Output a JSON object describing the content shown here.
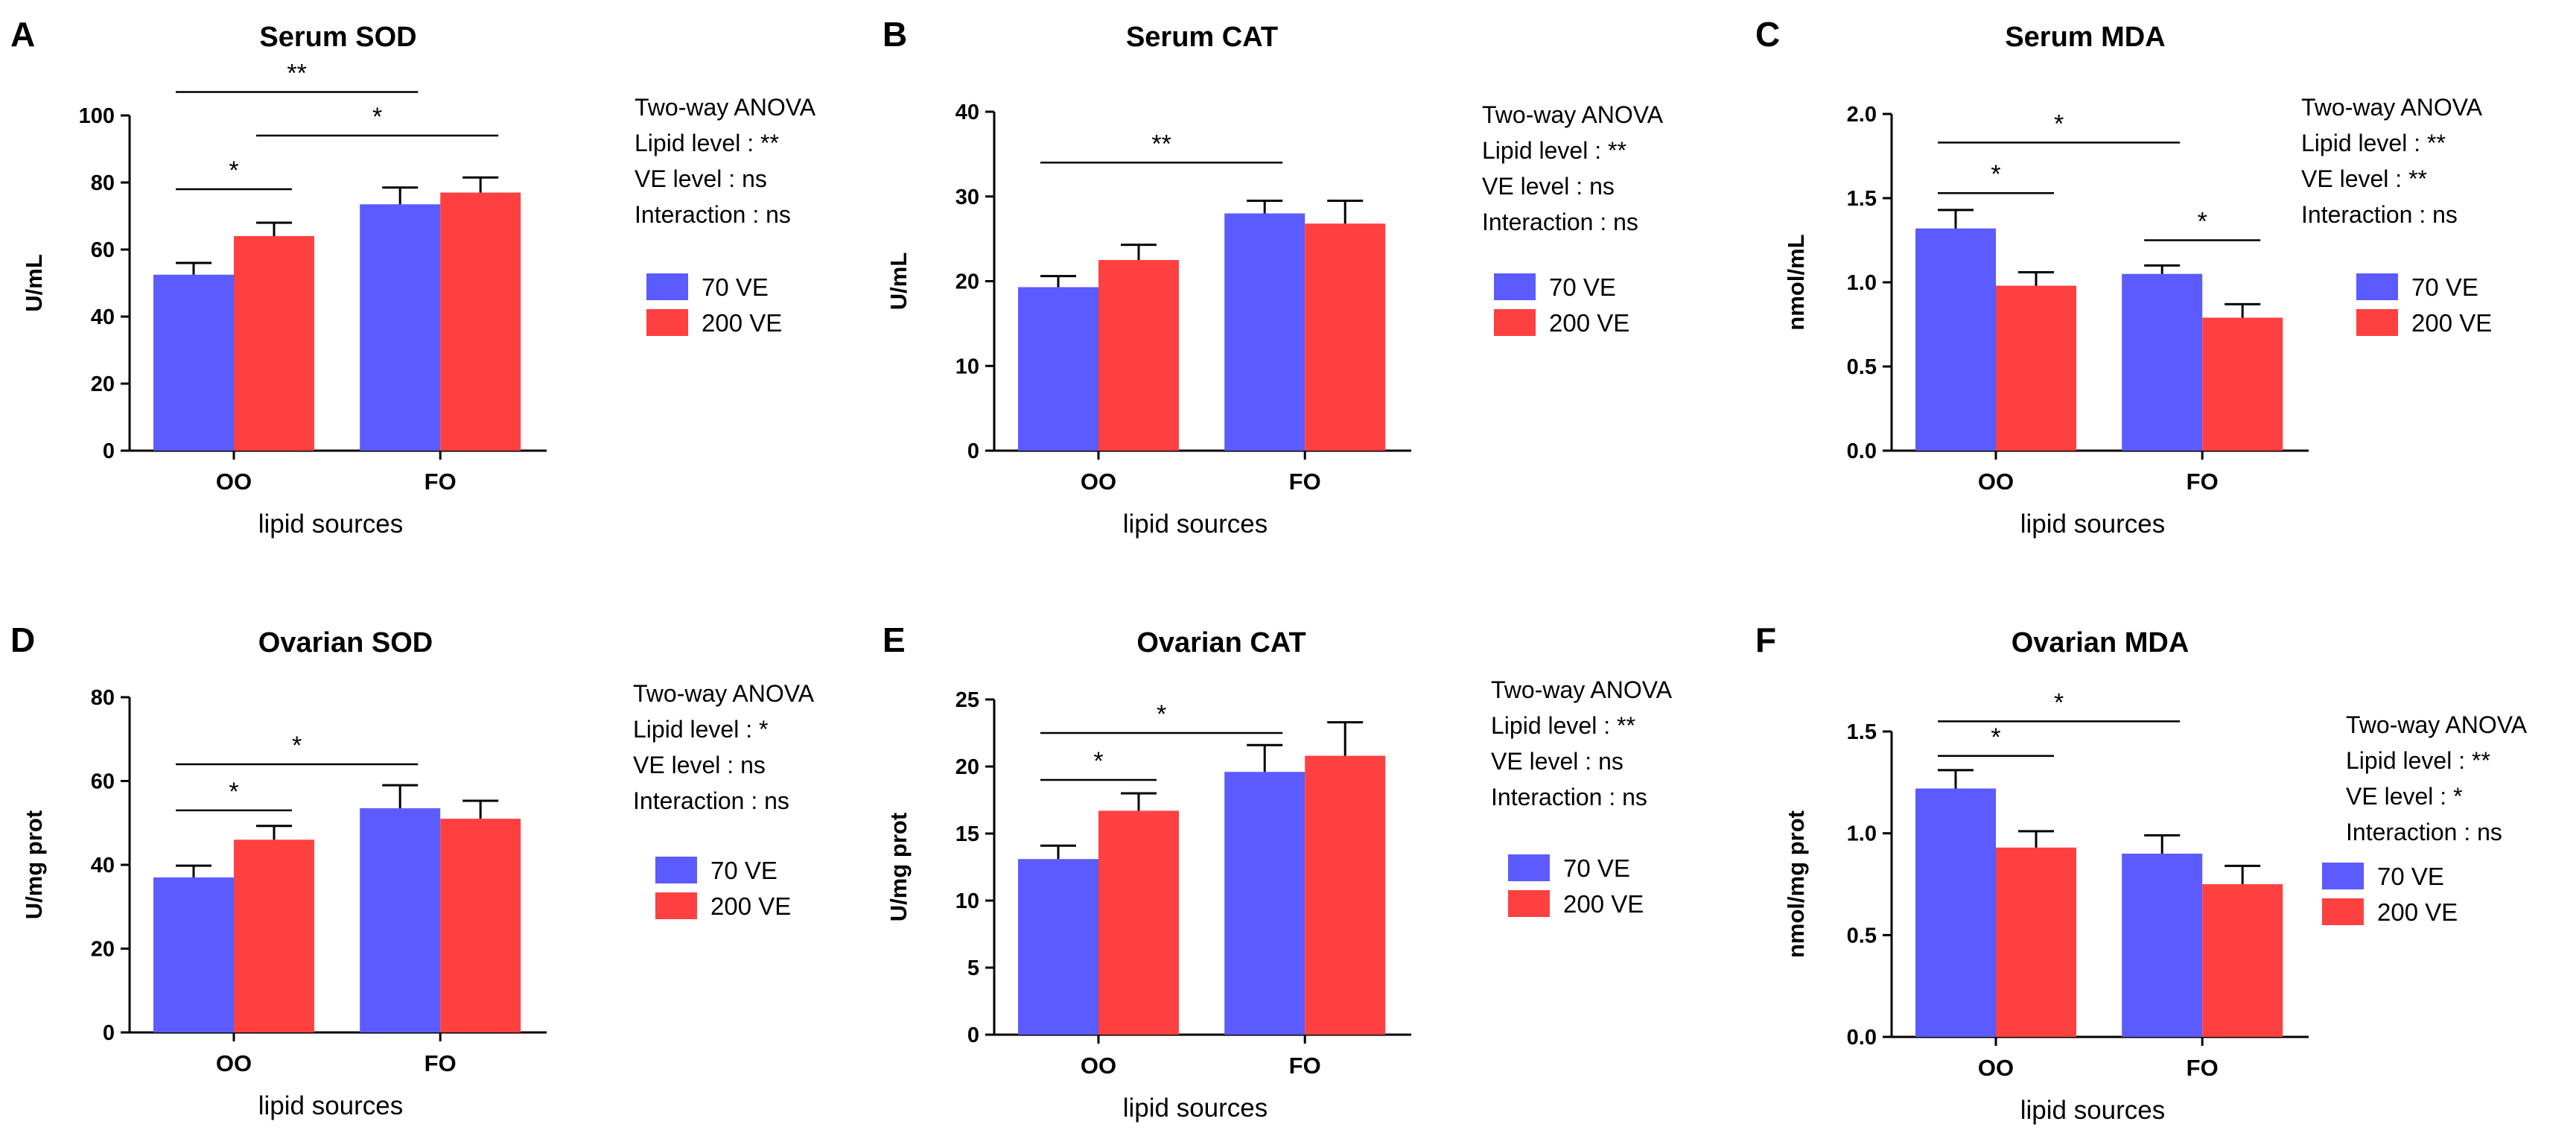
{
  "colors": {
    "series_70": "#5b5bff",
    "series_200": "#ff4040"
  },
  "chart_data": [
    {
      "id": "A",
      "type": "bar",
      "panel_label": "A",
      "title": "Serum SOD",
      "xlabel": "lipid sources",
      "ylabel": "U/mL",
      "ylim": [
        0,
        100
      ],
      "yticks": [
        0,
        20,
        40,
        60,
        80,
        100
      ],
      "tick_decimals": 0,
      "categories": [
        "OO",
        "FO"
      ],
      "series": [
        {
          "name": "70   VE",
          "values": [
            52.5,
            73.5
          ],
          "errors": [
            3.5,
            5.0
          ]
        },
        {
          "name": "200 VE",
          "values": [
            64.0,
            77.0
          ],
          "errors": [
            4.0,
            4.5
          ]
        }
      ],
      "stats": [
        "Two-way ANOVA",
        "Lipid level   : **",
        "VE    level   : ns",
        "Interaction : ns"
      ],
      "significance": [
        {
          "from": [
            0,
            0
          ],
          "to": [
            1,
            0
          ],
          "y": 107,
          "label": "**"
        },
        {
          "from": [
            0,
            1
          ],
          "to": [
            1,
            1
          ],
          "y": 94,
          "label": "*"
        },
        {
          "from": [
            0,
            0
          ],
          "to": [
            0,
            1
          ],
          "y": 78,
          "label": "*"
        }
      ]
    },
    {
      "id": "B",
      "type": "bar",
      "panel_label": "B",
      "title": "Serum CAT",
      "xlabel": "lipid sources",
      "ylabel": "U/mL",
      "ylim": [
        0,
        40
      ],
      "yticks": [
        0,
        10,
        20,
        30,
        40
      ],
      "tick_decimals": 0,
      "categories": [
        "OO",
        "FO"
      ],
      "series": [
        {
          "name": "70   VE",
          "values": [
            19.3,
            28.0
          ],
          "errors": [
            1.3,
            1.5
          ]
        },
        {
          "name": "200 VE",
          "values": [
            22.5,
            26.8
          ],
          "errors": [
            1.8,
            2.7
          ]
        }
      ],
      "stats": [
        "Two-way ANOVA",
        "Lipid level   : **",
        "VE    level   : ns",
        "Interaction : ns"
      ],
      "significance": [
        {
          "from": [
            0,
            0
          ],
          "to": [
            1,
            0
          ],
          "y": 34,
          "label": "**"
        }
      ]
    },
    {
      "id": "C",
      "type": "bar",
      "panel_label": "C",
      "title": "Serum MDA",
      "xlabel": "lipid sources",
      "ylabel": "nmol/mL",
      "ylim": [
        0,
        2.0
      ],
      "yticks": [
        0,
        0.5,
        1.0,
        1.5,
        2.0
      ],
      "tick_decimals": 1,
      "categories": [
        "OO",
        "FO"
      ],
      "series": [
        {
          "name": "70   VE",
          "values": [
            1.32,
            1.05
          ],
          "errors": [
            0.11,
            0.05
          ]
        },
        {
          "name": "200 VE",
          "values": [
            0.98,
            0.79
          ],
          "errors": [
            0.08,
            0.08
          ]
        }
      ],
      "stats": [
        "Two-way ANOVA",
        "Lipid level   : **",
        "VE    level   : **",
        "Interaction : ns"
      ],
      "significance": [
        {
          "from": [
            0,
            0
          ],
          "to": [
            1,
            0
          ],
          "y": 1.83,
          "label": "*"
        },
        {
          "from": [
            0,
            0
          ],
          "to": [
            0,
            1
          ],
          "y": 1.53,
          "label": "*"
        },
        {
          "from": [
            1,
            0
          ],
          "to": [
            1,
            1
          ],
          "y": 1.25,
          "label": "*"
        }
      ]
    },
    {
      "id": "D",
      "type": "bar",
      "panel_label": "D",
      "title": "Ovarian SOD",
      "xlabel": "lipid sources",
      "ylabel": "U/mg prot",
      "ylim": [
        0,
        80
      ],
      "yticks": [
        0,
        20,
        40,
        60,
        80
      ],
      "tick_decimals": 0,
      "categories": [
        "OO",
        "FO"
      ],
      "series": [
        {
          "name": "70   VE",
          "values": [
            37.0,
            53.5
          ],
          "errors": [
            2.8,
            5.5
          ]
        },
        {
          "name": "200 VE",
          "values": [
            46.0,
            51.0
          ],
          "errors": [
            3.3,
            4.3
          ]
        }
      ],
      "stats": [
        "Two-way ANOVA",
        "Lipid level   : *",
        "VE    level   : ns",
        "Interaction : ns"
      ],
      "significance": [
        {
          "from": [
            0,
            0
          ],
          "to": [
            1,
            0
          ],
          "y": 64,
          "label": "*"
        },
        {
          "from": [
            0,
            0
          ],
          "to": [
            0,
            1
          ],
          "y": 53,
          "label": "*"
        }
      ]
    },
    {
      "id": "E",
      "type": "bar",
      "panel_label": "E",
      "title": "Ovarian CAT",
      "xlabel": "lipid sources",
      "ylabel": "U/mg prot",
      "ylim": [
        0,
        25
      ],
      "yticks": [
        0,
        5,
        10,
        15,
        20,
        25
      ],
      "tick_decimals": 0,
      "categories": [
        "OO",
        "FO"
      ],
      "series": [
        {
          "name": "70   VE",
          "values": [
            13.1,
            19.6
          ],
          "errors": [
            1.0,
            2.0
          ]
        },
        {
          "name": "200 VE",
          "values": [
            16.7,
            20.8
          ],
          "errors": [
            1.3,
            2.5
          ]
        }
      ],
      "stats": [
        "Two-way ANOVA",
        "Lipid level   : **",
        "VE    level   : ns",
        "Interaction : ns"
      ],
      "significance": [
        {
          "from": [
            0,
            0
          ],
          "to": [
            1,
            0
          ],
          "y": 22.5,
          "label": "*"
        },
        {
          "from": [
            0,
            0
          ],
          "to": [
            0,
            1
          ],
          "y": 19,
          "label": "*"
        }
      ]
    },
    {
      "id": "F",
      "type": "bar",
      "panel_label": "F",
      "title": "Ovarian MDA",
      "xlabel": "lipid sources",
      "ylabel": "nmol/mg prot",
      "ylim": [
        0,
        1.5
      ],
      "yticks": [
        0,
        0.5,
        1.0,
        1.5
      ],
      "tick_decimals": 1,
      "categories": [
        "OO",
        "FO"
      ],
      "series": [
        {
          "name": "70   VE",
          "values": [
            1.22,
            0.9
          ],
          "errors": [
            0.09,
            0.09
          ]
        },
        {
          "name": "200 VE",
          "values": [
            0.93,
            0.75
          ],
          "errors": [
            0.08,
            0.09
          ]
        }
      ],
      "stats": [
        "Two-way ANOVA",
        "Lipid level  : **",
        "VE    level   : *",
        "Interaction : ns"
      ],
      "significance": [
        {
          "from": [
            0,
            0
          ],
          "to": [
            1,
            0
          ],
          "y": 1.55,
          "label": "*"
        },
        {
          "from": [
            0,
            0
          ],
          "to": [
            0,
            1
          ],
          "y": 1.38,
          "label": "*"
        }
      ]
    }
  ]
}
